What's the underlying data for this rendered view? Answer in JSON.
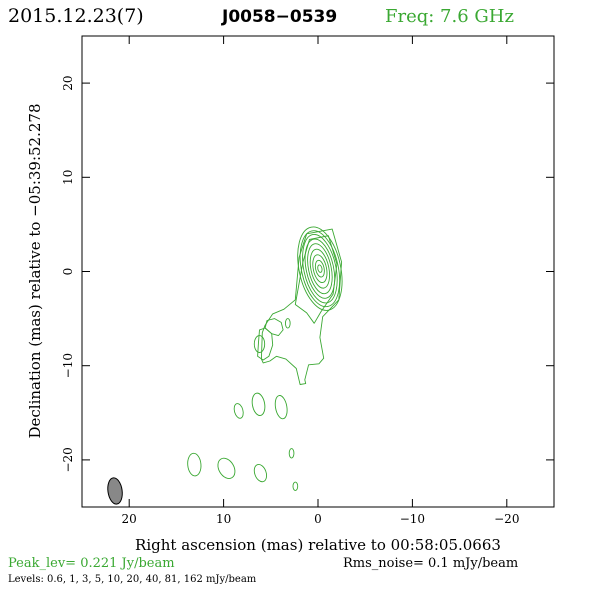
{
  "header": {
    "date": "2015.12.23(7)",
    "source": "J0058−0539",
    "freq": "Freq: 7.6 GHz"
  },
  "chart_data": {
    "type": "contour",
    "xlabel": "Right ascension (mas) relative to 00:58:05.0663",
    "ylabel": "Declination (mas) relative to −05:39:52.278",
    "xlim": [
      25,
      -25
    ],
    "ylim": [
      -25,
      25
    ],
    "xticks": [
      20,
      10,
      0,
      -10,
      -20
    ],
    "yticks": [
      20,
      10,
      0,
      -10,
      -20
    ],
    "xtick_labels": [
      "20",
      "10",
      "0",
      "−10",
      "−20"
    ],
    "ytick_labels": [
      "20",
      "10",
      "0",
      "−10",
      "−20"
    ],
    "contour_color": "#3aa832",
    "core": {
      "x": -0.2,
      "y": 0.3,
      "rings": [
        {
          "rx": 2.2,
          "ry": 4.5
        },
        {
          "rx": 1.95,
          "ry": 4.1
        },
        {
          "rx": 1.7,
          "ry": 3.7
        },
        {
          "rx": 1.45,
          "ry": 3.2
        },
        {
          "rx": 1.2,
          "ry": 2.7
        },
        {
          "rx": 0.95,
          "ry": 2.1
        },
        {
          "rx": 0.7,
          "ry": 1.5
        },
        {
          "rx": 0.45,
          "ry": 0.9
        },
        {
          "rx": 0.22,
          "ry": 0.4
        }
      ],
      "tilt_deg": -12
    },
    "jet_outer": [
      [
        2.0,
        1.5
      ],
      [
        1.2,
        4.0
      ],
      [
        -1.5,
        4.5
      ],
      [
        -2.5,
        1.0
      ],
      [
        -2.2,
        -3.0
      ],
      [
        -0.5,
        -4.8
      ],
      [
        -0.2,
        -7.0
      ],
      [
        -0.6,
        -9.2
      ],
      [
        -0.1,
        -9.8
      ],
      [
        1.0,
        -9.9
      ],
      [
        1.4,
        -11.5
      ],
      [
        1.3,
        -11.9
      ],
      [
        1.9,
        -12.0
      ],
      [
        2.3,
        -10.3
      ],
      [
        3.4,
        -9.3
      ],
      [
        4.4,
        -9.0
      ],
      [
        5.1,
        -9.5
      ],
      [
        5.8,
        -9.7
      ],
      [
        6.0,
        -9.3
      ],
      [
        5.9,
        -6.5
      ],
      [
        5.6,
        -5.7
      ],
      [
        4.8,
        -4.5
      ],
      [
        3.6,
        -4.0
      ],
      [
        2.4,
        -3.0
      ],
      [
        2.0,
        1.5
      ]
    ],
    "jet_inner": [
      [
        1.6,
        1.0
      ],
      [
        0.9,
        3.4
      ],
      [
        -1.1,
        3.8
      ],
      [
        -2.0,
        0.8
      ],
      [
        -1.6,
        -2.4
      ],
      [
        -0.3,
        -4.3
      ],
      [
        0.4,
        -5.5
      ],
      [
        1.2,
        -4.4
      ],
      [
        2.4,
        -3.5
      ],
      [
        1.6,
        1.0
      ]
    ],
    "jet_lobe": [
      [
        5.6,
        -6.0
      ],
      [
        6.2,
        -6.2
      ],
      [
        6.3,
        -7.5
      ],
      [
        6.4,
        -9.0
      ],
      [
        5.8,
        -9.4
      ],
      [
        5.2,
        -9.0
      ],
      [
        4.8,
        -7.8
      ],
      [
        4.9,
        -6.6
      ],
      [
        5.6,
        -6.0
      ]
    ],
    "jet_lobe2": [
      [
        4.6,
        -5.0
      ],
      [
        5.4,
        -5.2
      ],
      [
        5.6,
        -6.0
      ],
      [
        4.9,
        -6.6
      ],
      [
        4.2,
        -6.8
      ],
      [
        3.7,
        -6.2
      ],
      [
        3.9,
        -5.4
      ],
      [
        4.6,
        -5.0
      ]
    ],
    "blobs": [
      {
        "x": 6.2,
        "y": -7.7,
        "rx": 0.55,
        "ry": 0.9,
        "tilt": 0
      },
      {
        "x": 3.2,
        "y": -5.5,
        "rx": 0.25,
        "ry": 0.5,
        "tilt": 0
      },
      {
        "x": 8.4,
        "y": -14.8,
        "rx": 0.45,
        "ry": 0.8,
        "tilt": -15
      },
      {
        "x": 6.3,
        "y": -14.1,
        "rx": 0.65,
        "ry": 1.2,
        "tilt": -10
      },
      {
        "x": 3.9,
        "y": -14.4,
        "rx": 0.6,
        "ry": 1.25,
        "tilt": -10
      },
      {
        "x": 13.1,
        "y": -20.5,
        "rx": 0.7,
        "ry": 1.2,
        "tilt": -5
      },
      {
        "x": 9.7,
        "y": -20.9,
        "rx": 0.8,
        "ry": 1.15,
        "tilt": -30
      },
      {
        "x": 6.1,
        "y": -21.4,
        "rx": 0.6,
        "ry": 0.95,
        "tilt": -20
      },
      {
        "x": 2.8,
        "y": -19.3,
        "rx": 0.25,
        "ry": 0.5,
        "tilt": 0
      },
      {
        "x": 2.4,
        "y": -22.8,
        "rx": 0.25,
        "ry": 0.45,
        "tilt": 0
      }
    ],
    "beam": {
      "x": 21.5,
      "y": -23.3,
      "rx": 0.75,
      "ry": 1.4,
      "tilt": -8,
      "fill": "#888888"
    }
  },
  "footer": {
    "peak": "Peak_lev=  0.221 Jy/beam",
    "rms": "Rms_noise=   0.1 mJy/beam",
    "levels": "Levels: 0.6,    1,    3,    5,   10,   20,   40,   81,  162 mJy/beam"
  }
}
